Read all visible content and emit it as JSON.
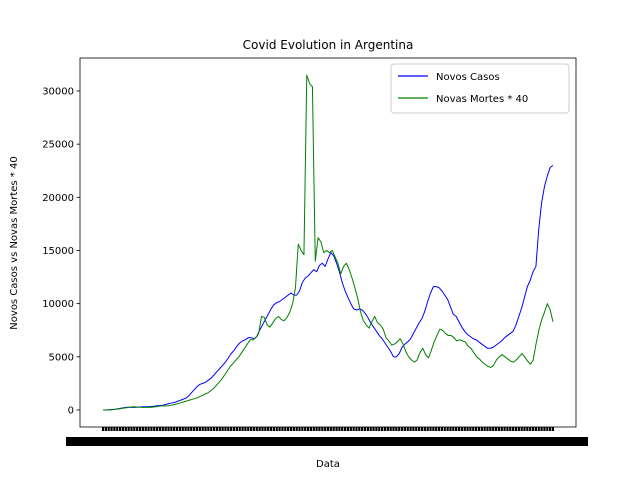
{
  "chart_data": {
    "type": "line",
    "title": "Covid Evolution in Argentina",
    "xlabel": "Data",
    "ylabel": "Novos Casos vs Novas Mortes * 40",
    "ylim": [
      -1600,
      33100
    ],
    "yticks": [
      0,
      5000,
      10000,
      15000,
      20000,
      25000,
      30000
    ],
    "grid": false,
    "legend_position": "top-right",
    "series": [
      {
        "name": "Novos Casos",
        "color": "#0000ff",
        "values": [
          0,
          10,
          20,
          40,
          60,
          100,
          150,
          200,
          250,
          260,
          250,
          240,
          260,
          280,
          300,
          300,
          310,
          330,
          350,
          400,
          420,
          450,
          520,
          600,
          650,
          700,
          800,
          900,
          1000,
          1100,
          1300,
          1600,
          1900,
          2200,
          2400,
          2500,
          2600,
          2800,
          3000,
          3300,
          3600,
          3900,
          4200,
          4500,
          4900,
          5300,
          5600,
          6000,
          6300,
          6500,
          6600,
          6800,
          6800,
          6700,
          6900,
          7500,
          8000,
          8500,
          9000,
          9500,
          9900,
          10100,
          10200,
          10400,
          10600,
          10800,
          11000,
          10800,
          10800,
          11200,
          12000,
          12400,
          12600,
          12900,
          13200,
          13000,
          13600,
          13800,
          13500,
          14200,
          14800,
          14500,
          13800,
          13000,
          12000,
          11200,
          10600,
          10000,
          9500,
          9400,
          9500,
          9400,
          9100,
          8700,
          8200,
          7800,
          7400,
          7000,
          6700,
          6300,
          5900,
          5500,
          5000,
          5000,
          5300,
          5900,
          6200,
          6400,
          6700,
          7200,
          7700,
          8200,
          8600,
          9300,
          10200,
          11000,
          11600,
          11600,
          11500,
          11200,
          10800,
          10400,
          9700,
          9000,
          8800,
          8300,
          7800,
          7400,
          7100,
          6900,
          6700,
          6600,
          6400,
          6200,
          6000,
          5800,
          5800,
          5900,
          6100,
          6300,
          6500,
          6800,
          7000,
          7200,
          7400,
          8000,
          8800,
          9600,
          10600,
          11600,
          12200,
          13000,
          13500,
          17000,
          19500,
          21000,
          22000,
          22800,
          23000
        ]
      },
      {
        "name": "Novas Mortes * 40",
        "color": "#008000",
        "values": [
          0,
          0,
          0,
          20,
          40,
          80,
          120,
          160,
          200,
          240,
          280,
          300,
          280,
          260,
          250,
          240,
          240,
          260,
          280,
          320,
          360,
          400,
          380,
          400,
          440,
          500,
          560,
          640,
          720,
          800,
          880,
          960,
          1040,
          1120,
          1240,
          1360,
          1480,
          1600,
          1800,
          2000,
          2300,
          2600,
          2900,
          3300,
          3700,
          4100,
          4400,
          4700,
          5000,
          5400,
          5800,
          6200,
          6600,
          6600,
          6800,
          7200,
          8800,
          8700,
          8000,
          7800,
          8200,
          8600,
          8800,
          8500,
          8400,
          8700,
          9200,
          10000,
          11500,
          15600,
          15000,
          14600,
          31500,
          30700,
          30400,
          14000,
          16200,
          15800,
          14800,
          15000,
          14800,
          15000,
          14400,
          13800,
          12800,
          13500,
          13800,
          13200,
          12400,
          11500,
          10500,
          9200,
          8400,
          8000,
          7700,
          8300,
          8800,
          8200,
          8000,
          7600,
          6800,
          6500,
          6100,
          6200,
          6400,
          6700,
          6200,
          5500,
          5000,
          4700,
          4500,
          4700,
          5400,
          5800,
          5200,
          4900,
          5600,
          6400,
          7000,
          7600,
          7500,
          7200,
          7000,
          7000,
          6800,
          6500,
          6600,
          6500,
          6400,
          6000,
          5800,
          5400,
          5000,
          4800,
          4500,
          4300,
          4100,
          4000,
          4200,
          4700,
          5000,
          5200,
          5000,
          4800,
          4600,
          4500,
          4700,
          5000,
          5300,
          5000,
          4600,
          4300,
          4700,
          6200,
          7500,
          8500,
          9200,
          10000,
          9400,
          8300
        ]
      }
    ]
  }
}
